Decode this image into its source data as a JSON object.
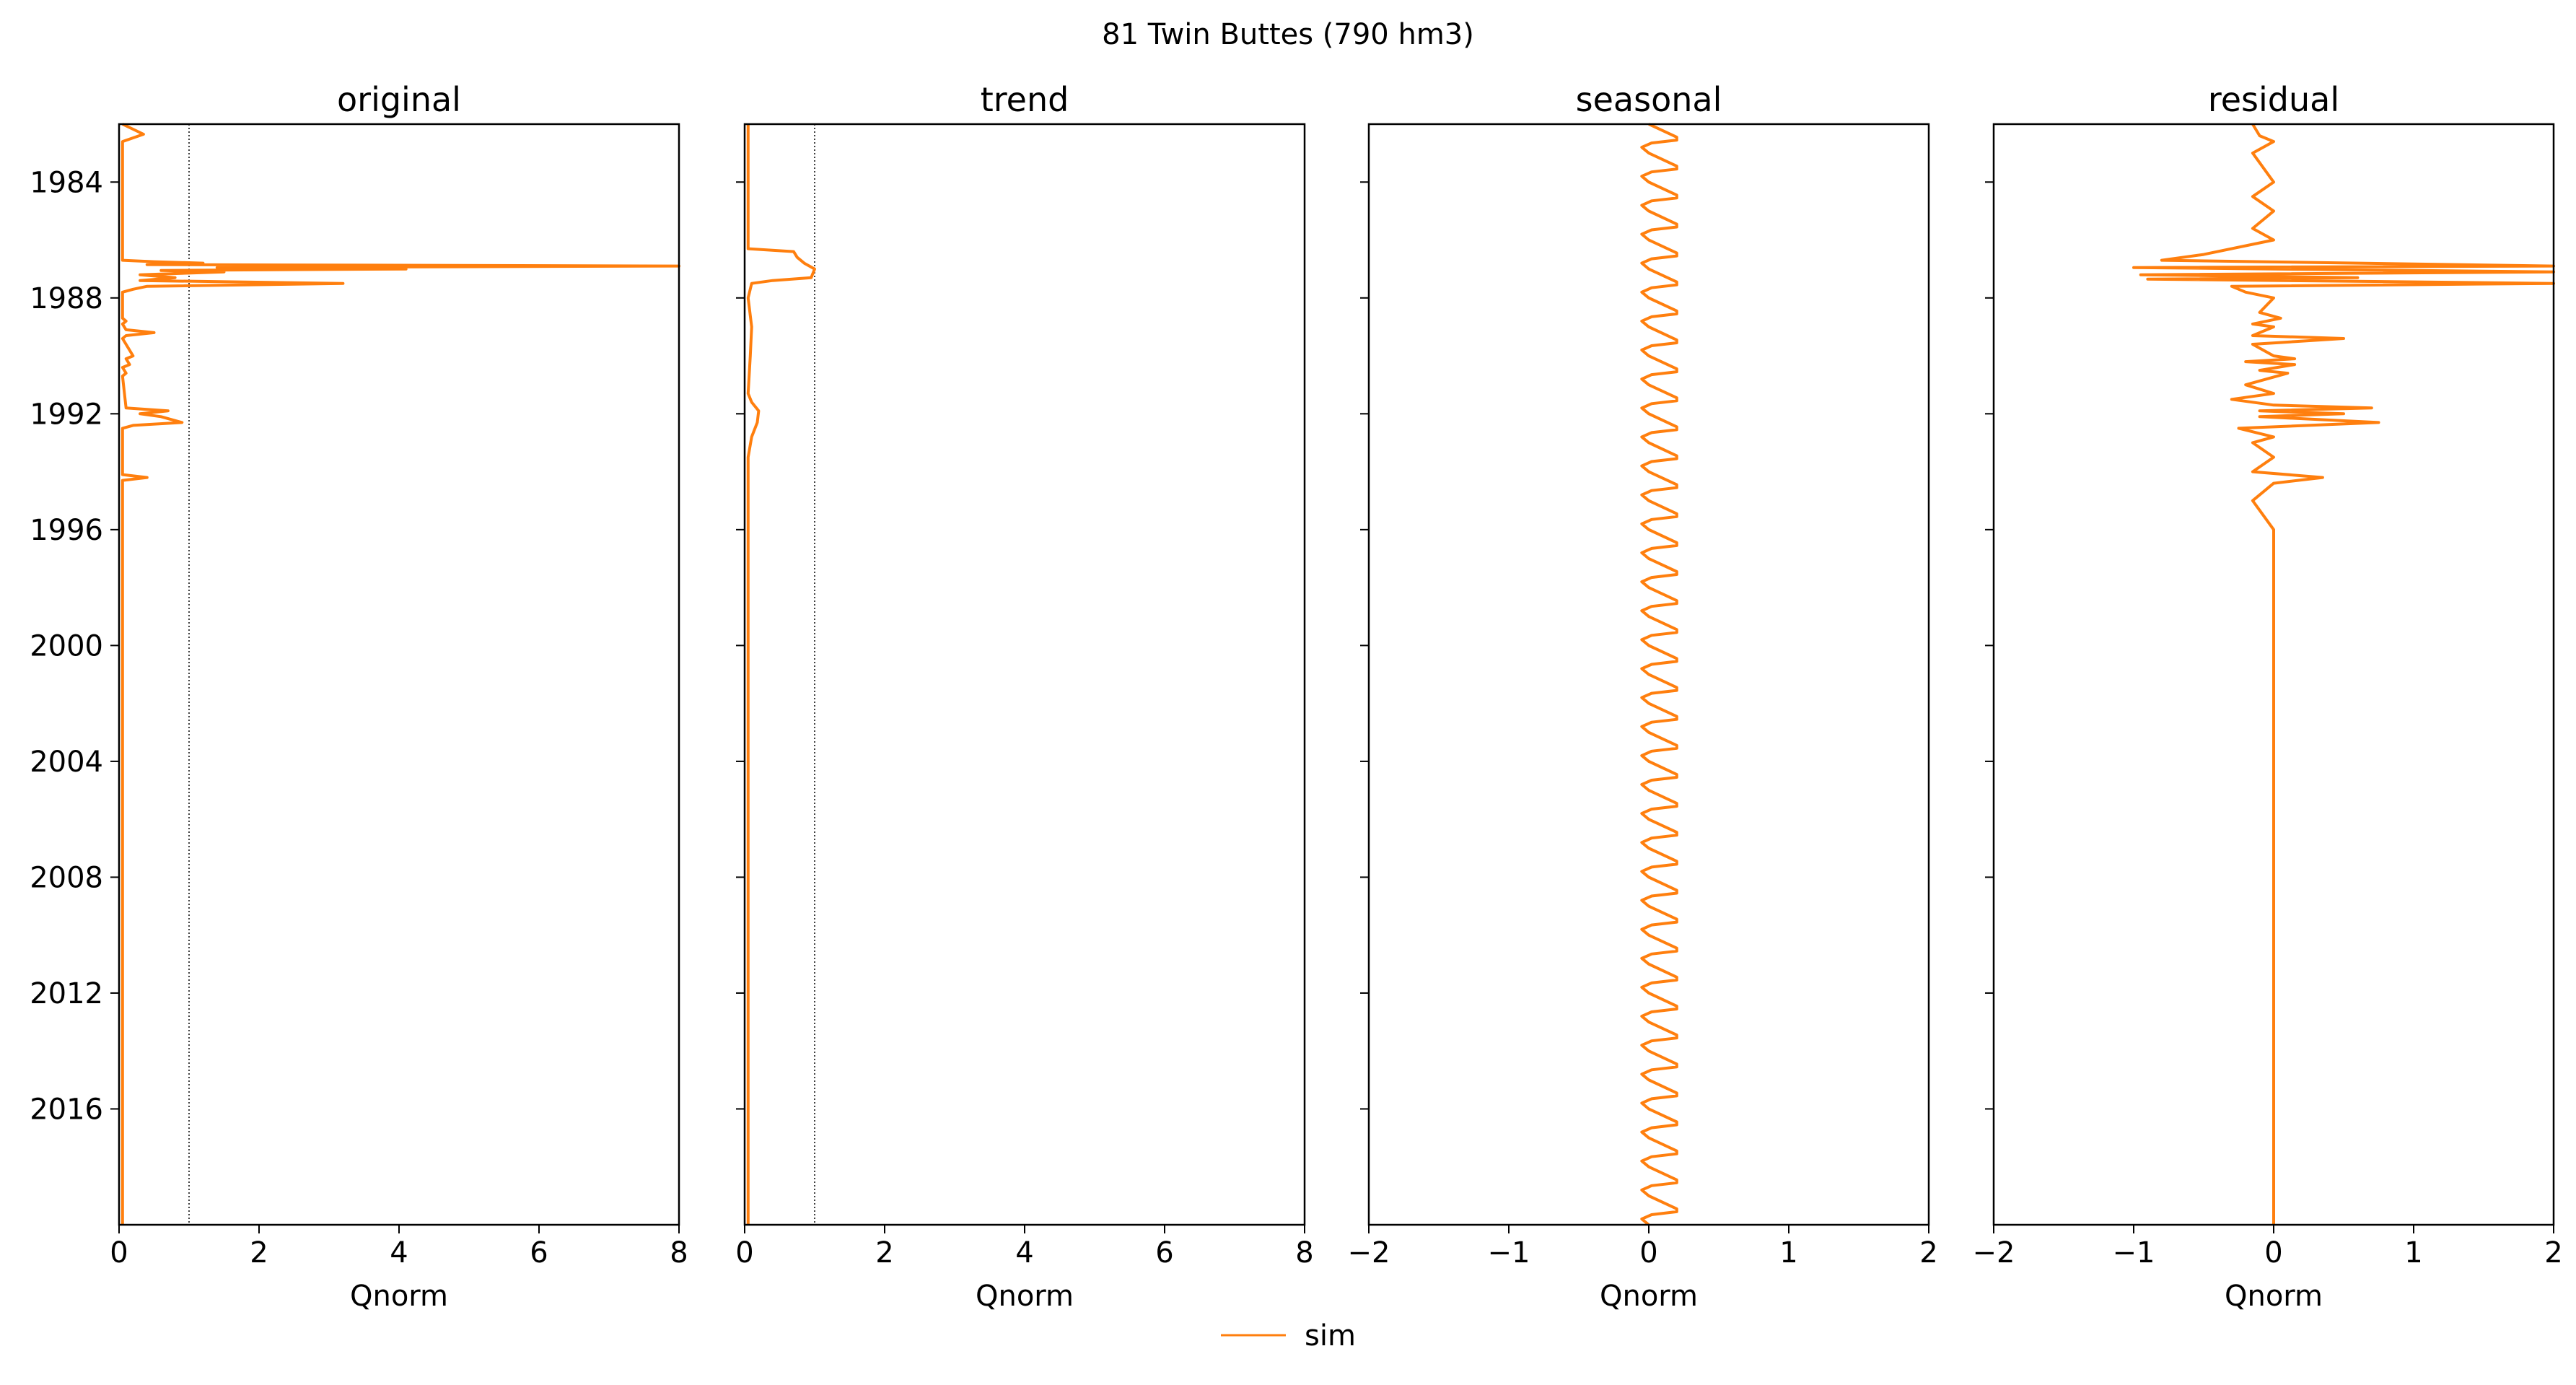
{
  "figure": {
    "suptitle": "81  Twin Buttes (790 hm3)",
    "legend": {
      "label": "sim",
      "color": "#ff7f0e",
      "placement": "bottom-center"
    }
  },
  "chart_data": [
    {
      "type": "line",
      "title": "original",
      "xlabel": "Qnorm",
      "ylabel": "",
      "xlim": [
        0,
        8
      ],
      "xticks": [
        0,
        2,
        4,
        6,
        8
      ],
      "xtick_labels": [
        "0",
        "2",
        "4",
        "6",
        "8"
      ],
      "ylim": [
        2020.0,
        1982.0
      ],
      "yticks": [
        1984,
        1988,
        1992,
        1996,
        2000,
        2004,
        2008,
        2012,
        2016
      ],
      "ytick_labels": [
        "1984",
        "1988",
        "1992",
        "1996",
        "2000",
        "2004",
        "2008",
        "2012",
        "2016"
      ],
      "reference_lines": [
        0,
        1
      ],
      "grid": false,
      "series": [
        {
          "name": "sim",
          "color": "#ff7f0e",
          "points": [
            [
              0.05,
              1982.0
            ],
            [
              0.35,
              1982.35
            ],
            [
              0.05,
              1982.6
            ],
            [
              0.05,
              1986.7
            ],
            [
              0.5,
              1986.75
            ],
            [
              1.2,
              1986.8
            ],
            [
              0.4,
              1986.85
            ],
            [
              8.0,
              1986.9
            ],
            [
              1.4,
              1986.95
            ],
            [
              4.1,
              1987.0
            ],
            [
              0.6,
              1987.05
            ],
            [
              1.5,
              1987.1
            ],
            [
              0.3,
              1987.2
            ],
            [
              0.8,
              1987.3
            ],
            [
              0.3,
              1987.4
            ],
            [
              3.2,
              1987.5
            ],
            [
              0.4,
              1987.6
            ],
            [
              0.2,
              1987.7
            ],
            [
              0.05,
              1987.8
            ],
            [
              0.05,
              1988.7
            ],
            [
              0.1,
              1988.8
            ],
            [
              0.05,
              1988.9
            ],
            [
              0.1,
              1989.1
            ],
            [
              0.5,
              1989.2
            ],
            [
              0.1,
              1989.3
            ],
            [
              0.05,
              1989.4
            ],
            [
              0.2,
              1990.0
            ],
            [
              0.1,
              1990.1
            ],
            [
              0.15,
              1990.3
            ],
            [
              0.05,
              1990.4
            ],
            [
              0.1,
              1990.6
            ],
            [
              0.05,
              1990.7
            ],
            [
              0.1,
              1991.8
            ],
            [
              0.7,
              1991.9
            ],
            [
              0.3,
              1992.0
            ],
            [
              0.6,
              1992.1
            ],
            [
              0.9,
              1992.3
            ],
            [
              0.2,
              1992.4
            ],
            [
              0.05,
              1992.5
            ],
            [
              0.05,
              1994.1
            ],
            [
              0.4,
              1994.2
            ],
            [
              0.05,
              1994.3
            ],
            [
              0.05,
              2020.0
            ]
          ]
        }
      ]
    },
    {
      "type": "line",
      "title": "trend",
      "xlabel": "Qnorm",
      "ylabel": "",
      "xlim": [
        0,
        8
      ],
      "xticks": [
        0,
        2,
        4,
        6,
        8
      ],
      "xtick_labels": [
        "0",
        "2",
        "4",
        "6",
        "8"
      ],
      "ylim": [
        2020.0,
        1982.0
      ],
      "reference_lines": [
        0,
        1
      ],
      "grid": false,
      "series": [
        {
          "name": "sim",
          "color": "#ff7f0e",
          "points": [
            [
              0.05,
              1982.0
            ],
            [
              0.05,
              1985.0
            ],
            [
              0.05,
              1986.3
            ],
            [
              0.7,
              1986.4
            ],
            [
              0.75,
              1986.6
            ],
            [
              0.85,
              1986.8
            ],
            [
              1.0,
              1987.0
            ],
            [
              0.95,
              1987.3
            ],
            [
              0.4,
              1987.4
            ],
            [
              0.1,
              1987.5
            ],
            [
              0.05,
              1988.0
            ],
            [
              0.1,
              1989.0
            ],
            [
              0.08,
              1990.0
            ],
            [
              0.05,
              1991.3
            ],
            [
              0.1,
              1991.6
            ],
            [
              0.2,
              1991.9
            ],
            [
              0.18,
              1992.3
            ],
            [
              0.1,
              1992.8
            ],
            [
              0.05,
              1993.5
            ],
            [
              0.05,
              1996.0
            ],
            [
              0.05,
              2020.0
            ]
          ]
        }
      ]
    },
    {
      "type": "line",
      "title": "seasonal",
      "xlabel": "Qnorm",
      "ylabel": "",
      "xlim": [
        -2,
        2
      ],
      "xticks": [
        -2,
        -1,
        0,
        1,
        2
      ],
      "xtick_labels": [
        "−2",
        "−1",
        "0",
        "1",
        "2"
      ],
      "ylim": [
        2020.0,
        1982.0
      ],
      "grid": false,
      "pattern": "annual cycle repeating every year, range about -0.05 to 0.2",
      "series": [
        {
          "name": "sim",
          "color": "#ff7f0e",
          "cycle": {
            "start": 1982,
            "end": 2019,
            "period_years": 1,
            "min": -0.05,
            "max": 0.2
          }
        }
      ]
    },
    {
      "type": "line",
      "title": "residual",
      "xlabel": "Qnorm",
      "ylabel": "",
      "xlim": [
        -2,
        2
      ],
      "xticks": [
        -2,
        -1,
        0,
        1,
        2
      ],
      "xtick_labels": [
        "−2",
        "−1",
        "0",
        "1",
        "2"
      ],
      "ylim": [
        2020.0,
        1982.0
      ],
      "grid": false,
      "series": [
        {
          "name": "sim",
          "color": "#ff7f0e",
          "points": [
            [
              -0.15,
              1982.0
            ],
            [
              -0.1,
              1982.4
            ],
            [
              0.0,
              1982.6
            ],
            [
              -0.15,
              1983.0
            ],
            [
              0.0,
              1984.0
            ],
            [
              -0.15,
              1984.5
            ],
            [
              0.0,
              1985.0
            ],
            [
              -0.15,
              1985.6
            ],
            [
              0.0,
              1986.0
            ],
            [
              -0.5,
              1986.5
            ],
            [
              -0.8,
              1986.7
            ],
            [
              2.0,
              1986.9
            ],
            [
              -1.0,
              1986.95
            ],
            [
              2.0,
              1987.1
            ],
            [
              -0.95,
              1987.2
            ],
            [
              0.6,
              1987.3
            ],
            [
              -0.9,
              1987.35
            ],
            [
              2.0,
              1987.5
            ],
            [
              -0.3,
              1987.6
            ],
            [
              -0.2,
              1987.8
            ],
            [
              0.0,
              1988.0
            ],
            [
              -0.1,
              1988.5
            ],
            [
              0.05,
              1988.7
            ],
            [
              -0.15,
              1988.9
            ],
            [
              0.0,
              1989.0
            ],
            [
              -0.15,
              1989.3
            ],
            [
              0.5,
              1989.4
            ],
            [
              -0.15,
              1989.6
            ],
            [
              0.0,
              1990.0
            ],
            [
              0.15,
              1990.1
            ],
            [
              -0.2,
              1990.2
            ],
            [
              0.15,
              1990.3
            ],
            [
              -0.1,
              1990.5
            ],
            [
              0.1,
              1990.6
            ],
            [
              -0.2,
              1991.0
            ],
            [
              0.0,
              1991.3
            ],
            [
              -0.3,
              1991.5
            ],
            [
              0.0,
              1991.7
            ],
            [
              0.7,
              1991.8
            ],
            [
              -0.1,
              1991.9
            ],
            [
              0.5,
              1992.0
            ],
            [
              -0.1,
              1992.1
            ],
            [
              0.75,
              1992.3
            ],
            [
              -0.25,
              1992.5
            ],
            [
              0.0,
              1992.8
            ],
            [
              -0.15,
              1993.0
            ],
            [
              0.0,
              1993.5
            ],
            [
              -0.15,
              1994.0
            ],
            [
              0.35,
              1994.2
            ],
            [
              0.0,
              1994.4
            ],
            [
              -0.15,
              1995.0
            ],
            [
              0.0,
              1996.0
            ],
            [
              0.0,
              2020.0
            ]
          ]
        }
      ]
    }
  ]
}
